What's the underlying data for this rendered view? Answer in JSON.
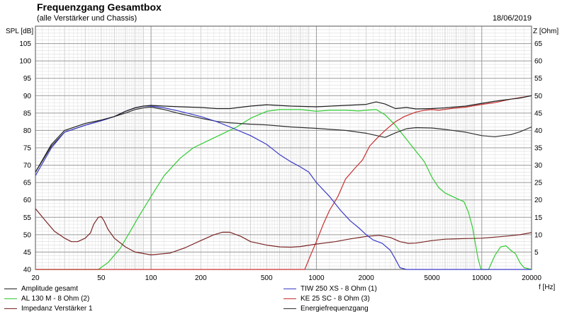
{
  "header": {
    "title": "Frequenzgang Gesamtbox",
    "subtitle": "(alle Verstärker und Chassis)",
    "date": "18/06/2019"
  },
  "chart_data": {
    "type": "line",
    "x_scale": "log",
    "xlim": [
      20,
      20000
    ],
    "xlabel": "f [Hz]",
    "xticks": [
      20,
      50,
      100,
      200,
      500,
      1000,
      2000,
      5000,
      10000,
      20000
    ],
    "ylabel_left": "SPL [dB]",
    "ylim_left": [
      40,
      110
    ],
    "yticks_left": [
      40,
      45,
      50,
      55,
      60,
      65,
      70,
      75,
      80,
      85,
      90,
      95,
      100,
      105
    ],
    "ylabel_right": "Z [Ohm]",
    "ylim_right": [
      0,
      70
    ],
    "yticks_right": [
      5,
      10,
      15,
      20,
      25,
      30,
      35,
      40,
      45,
      50,
      55,
      60,
      65
    ],
    "grid": true,
    "legend": "bottom",
    "series": [
      {
        "name": "Amplitude gesamt",
        "color": "#202020",
        "axis": "left",
        "points": [
          [
            20,
            68
          ],
          [
            25,
            76
          ],
          [
            30,
            80
          ],
          [
            40,
            82
          ],
          [
            50,
            83
          ],
          [
            60,
            84
          ],
          [
            70,
            85.5
          ],
          [
            80,
            86.5
          ],
          [
            90,
            87
          ],
          [
            100,
            87.2
          ],
          [
            120,
            87
          ],
          [
            150,
            86.8
          ],
          [
            200,
            86.6
          ],
          [
            250,
            86.3
          ],
          [
            300,
            86.3
          ],
          [
            400,
            87
          ],
          [
            500,
            87.4
          ],
          [
            700,
            87
          ],
          [
            1000,
            86.8
          ],
          [
            1500,
            87.2
          ],
          [
            2000,
            87.5
          ],
          [
            2300,
            88.2
          ],
          [
            2600,
            87.6
          ],
          [
            3000,
            86.3
          ],
          [
            3500,
            86.6
          ],
          [
            4000,
            86.2
          ],
          [
            5000,
            86.3
          ],
          [
            6000,
            86.5
          ],
          [
            8000,
            87
          ],
          [
            10000,
            87.8
          ],
          [
            12000,
            88.4
          ],
          [
            15000,
            89
          ],
          [
            17000,
            89.3
          ],
          [
            20000,
            90
          ]
        ]
      },
      {
        "name": "TIW 250 XS - 8 Ohm (1)",
        "color": "#3a3ac8",
        "axis": "left",
        "points": [
          [
            20,
            67
          ],
          [
            25,
            75
          ],
          [
            30,
            79.5
          ],
          [
            40,
            81.5
          ],
          [
            50,
            82.8
          ],
          [
            60,
            84
          ],
          [
            70,
            85.5
          ],
          [
            80,
            86.5
          ],
          [
            90,
            87
          ],
          [
            100,
            87
          ],
          [
            120,
            86.5
          ],
          [
            150,
            85.5
          ],
          [
            200,
            84
          ],
          [
            250,
            82.5
          ],
          [
            300,
            81
          ],
          [
            400,
            78.5
          ],
          [
            500,
            76
          ],
          [
            600,
            73
          ],
          [
            700,
            71
          ],
          [
            800,
            69.5
          ],
          [
            900,
            68
          ],
          [
            1000,
            65
          ],
          [
            1200,
            61
          ],
          [
            1400,
            57
          ],
          [
            1600,
            54
          ],
          [
            1800,
            52
          ],
          [
            2000,
            50
          ],
          [
            2200,
            48.5
          ],
          [
            2500,
            47.5
          ],
          [
            2800,
            45.5
          ],
          [
            3000,
            43
          ],
          [
            3200,
            40.5
          ],
          [
            3500,
            40
          ],
          [
            5000,
            40
          ],
          [
            8000,
            40
          ],
          [
            12000,
            40
          ],
          [
            20000,
            40
          ]
        ]
      },
      {
        "name": "Impedanz Verstärker 1",
        "color": "#7a2525",
        "axis": "right",
        "points": [
          [
            20,
            17.5
          ],
          [
            23,
            14
          ],
          [
            26,
            11
          ],
          [
            30,
            9
          ],
          [
            33,
            8
          ],
          [
            36,
            8
          ],
          [
            40,
            9
          ],
          [
            43,
            10.5
          ],
          [
            45,
            13
          ],
          [
            48,
            15
          ],
          [
            50,
            15.2
          ],
          [
            52,
            14
          ],
          [
            55,
            11.5
          ],
          [
            60,
            9
          ],
          [
            70,
            6.5
          ],
          [
            80,
            5
          ],
          [
            100,
            4.2
          ],
          [
            130,
            4.7
          ],
          [
            160,
            6.2
          ],
          [
            200,
            8.3
          ],
          [
            240,
            10
          ],
          [
            270,
            10.7
          ],
          [
            300,
            10.7
          ],
          [
            350,
            9.5
          ],
          [
            400,
            8
          ],
          [
            500,
            7
          ],
          [
            600,
            6.5
          ],
          [
            700,
            6.4
          ],
          [
            800,
            6.6
          ],
          [
            1000,
            7.3
          ],
          [
            1300,
            8
          ],
          [
            1600,
            8.8
          ],
          [
            2000,
            9.5
          ],
          [
            2400,
            9.8
          ],
          [
            2800,
            9.2
          ],
          [
            3200,
            8
          ],
          [
            3600,
            7.5
          ],
          [
            4000,
            7.6
          ],
          [
            5000,
            8.3
          ],
          [
            6000,
            8.7
          ],
          [
            8000,
            8.9
          ],
          [
            10000,
            9
          ],
          [
            12000,
            9.3
          ],
          [
            15000,
            9.7
          ],
          [
            17000,
            10
          ],
          [
            20000,
            10.6
          ]
        ]
      },
      {
        "name": "AL 130 M - 8 Ohm (2)",
        "color": "#33cc33",
        "axis": "left",
        "points": [
          [
            20,
            40
          ],
          [
            30,
            40
          ],
          [
            48,
            40
          ],
          [
            55,
            42
          ],
          [
            65,
            46
          ],
          [
            75,
            51
          ],
          [
            85,
            55.5
          ],
          [
            100,
            61
          ],
          [
            120,
            67
          ],
          [
            150,
            72
          ],
          [
            180,
            75
          ],
          [
            220,
            77
          ],
          [
            270,
            79
          ],
          [
            330,
            81
          ],
          [
            400,
            83.5
          ],
          [
            500,
            85.5
          ],
          [
            600,
            86
          ],
          [
            800,
            86
          ],
          [
            1000,
            85.5
          ],
          [
            1200,
            85.8
          ],
          [
            1500,
            85.8
          ],
          [
            1800,
            85.6
          ],
          [
            2000,
            85.8
          ],
          [
            2300,
            86
          ],
          [
            2600,
            84.5
          ],
          [
            3000,
            81.5
          ],
          [
            3500,
            77.5
          ],
          [
            4000,
            74
          ],
          [
            4500,
            71
          ],
          [
            5000,
            66.5
          ],
          [
            5500,
            63.5
          ],
          [
            6000,
            62
          ],
          [
            7000,
            60.5
          ],
          [
            7800,
            59.5
          ],
          [
            8300,
            56.5
          ],
          [
            8800,
            52
          ],
          [
            9500,
            43
          ],
          [
            9900,
            40
          ],
          [
            11000,
            40
          ],
          [
            12000,
            44
          ],
          [
            13000,
            46.5
          ],
          [
            14000,
            46.8
          ],
          [
            15000,
            45.5
          ],
          [
            16000,
            44.5
          ],
          [
            17000,
            42
          ],
          [
            18000,
            40.5
          ],
          [
            20000,
            40
          ]
        ]
      },
      {
        "name": "KE 25 SC - 8 Ohm   (3)",
        "color": "#c83030",
        "axis": "left",
        "points": [
          [
            20,
            40
          ],
          [
            300,
            40
          ],
          [
            700,
            40
          ],
          [
            850,
            40
          ],
          [
            920,
            44
          ],
          [
            1000,
            48
          ],
          [
            1100,
            53
          ],
          [
            1200,
            57
          ],
          [
            1350,
            61
          ],
          [
            1500,
            66
          ],
          [
            1700,
            69
          ],
          [
            1900,
            71.5
          ],
          [
            2100,
            75.5
          ],
          [
            2300,
            77.5
          ],
          [
            2600,
            80
          ],
          [
            3000,
            82.5
          ],
          [
            3400,
            84
          ],
          [
            4000,
            85.3
          ],
          [
            4500,
            85.8
          ],
          [
            5000,
            86
          ],
          [
            5500,
            85.8
          ],
          [
            6500,
            86.3
          ],
          [
            8000,
            86.7
          ],
          [
            10000,
            87.5
          ],
          [
            12000,
            88
          ],
          [
            15000,
            89
          ],
          [
            20000,
            90
          ]
        ]
      },
      {
        "name": "Energiefrequenzgang",
        "color": "#303030",
        "axis": "left",
        "points": [
          [
            20,
            68
          ],
          [
            25,
            75.5
          ],
          [
            30,
            79.5
          ],
          [
            40,
            81.5
          ],
          [
            50,
            82.8
          ],
          [
            60,
            84
          ],
          [
            70,
            85
          ],
          [
            80,
            86
          ],
          [
            90,
            86.5
          ],
          [
            100,
            86.7
          ],
          [
            120,
            86
          ],
          [
            150,
            84.8
          ],
          [
            200,
            83.5
          ],
          [
            250,
            82.6
          ],
          [
            300,
            82.2
          ],
          [
            400,
            81.8
          ],
          [
            500,
            81.6
          ],
          [
            700,
            81
          ],
          [
            1000,
            80.6
          ],
          [
            1500,
            80
          ],
          [
            2000,
            79.2
          ],
          [
            2600,
            78
          ],
          [
            3000,
            79.3
          ],
          [
            3500,
            80.5
          ],
          [
            4000,
            80.8
          ],
          [
            5000,
            80.7
          ],
          [
            6000,
            80.3
          ],
          [
            8000,
            79.5
          ],
          [
            10000,
            78.5
          ],
          [
            12000,
            78.2
          ],
          [
            15000,
            78.8
          ],
          [
            17000,
            79.6
          ],
          [
            20000,
            81
          ]
        ]
      }
    ]
  }
}
